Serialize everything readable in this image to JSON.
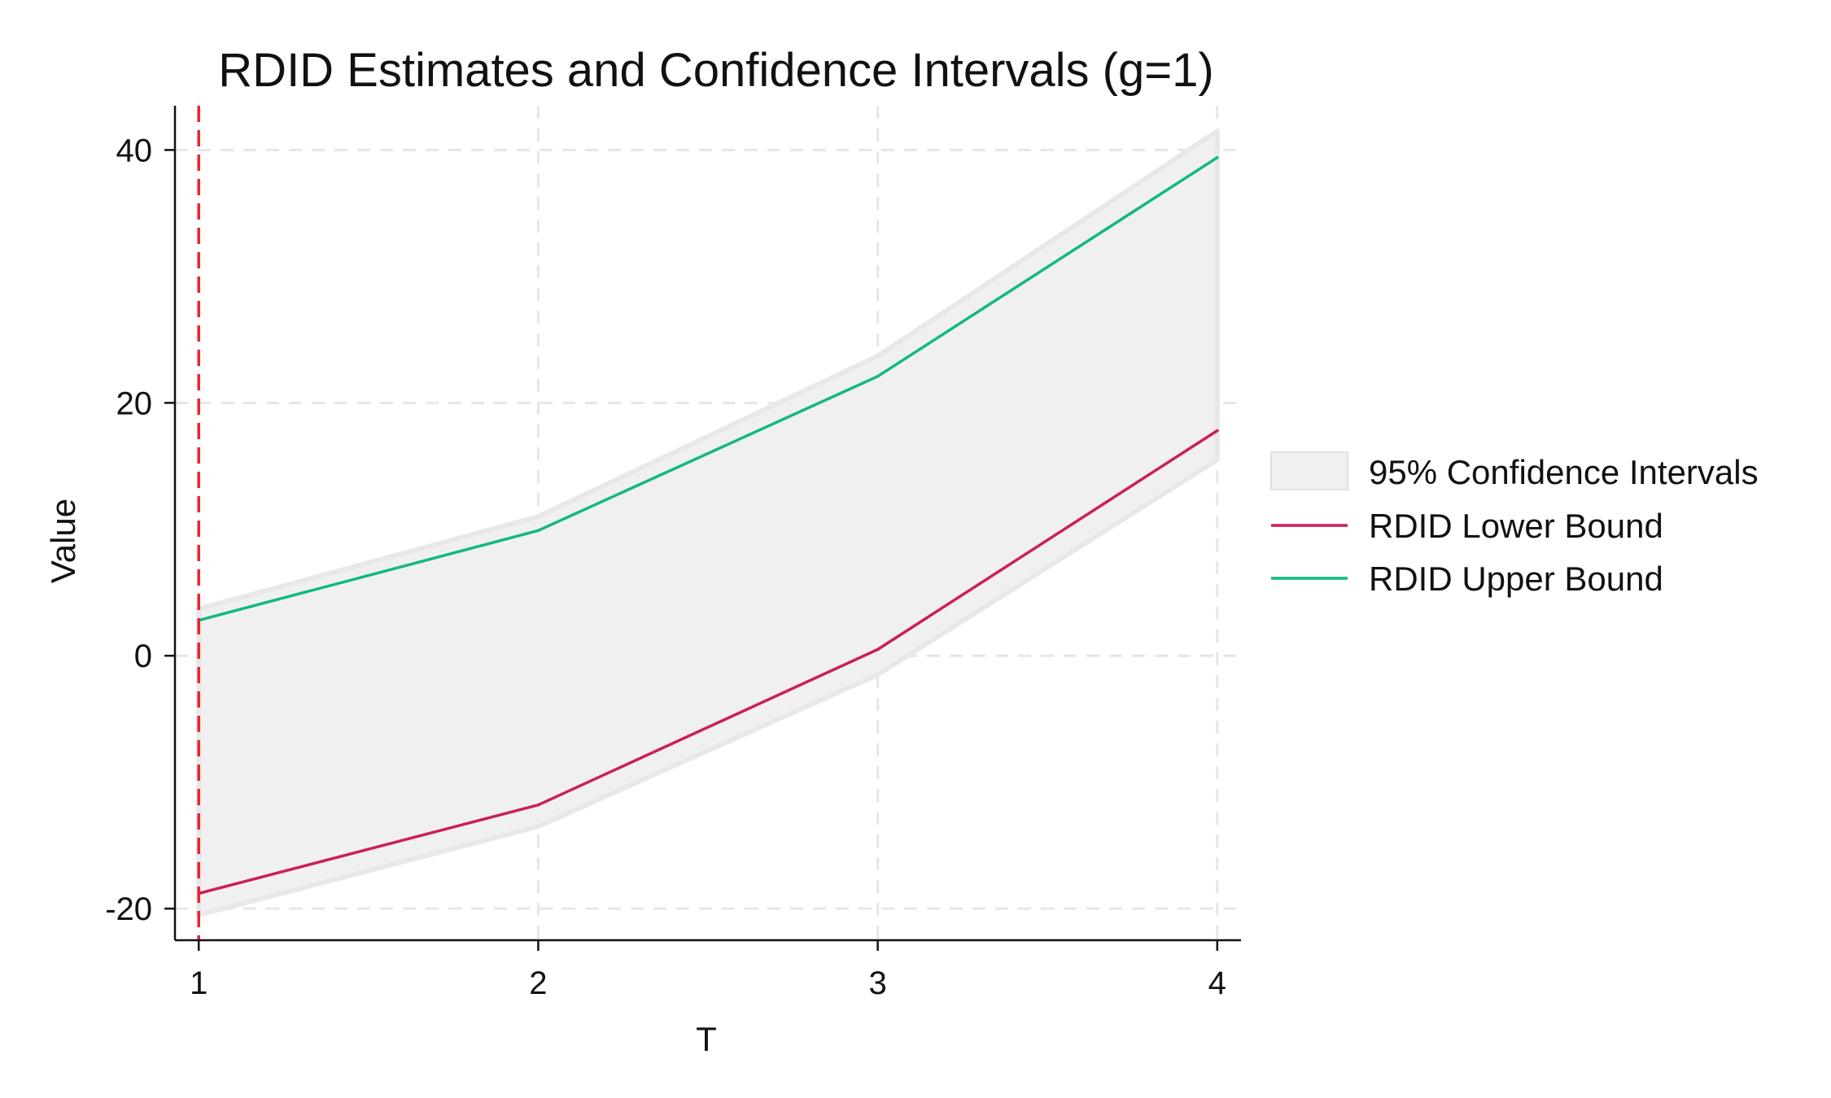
{
  "chart_data": {
    "type": "line",
    "title": "RDID Estimates and Confidence Intervals (g=1)",
    "xlabel": "T",
    "ylabel": "Value",
    "x": [
      1,
      2,
      3,
      4
    ],
    "xticks": [
      "1",
      "2",
      "3",
      "4"
    ],
    "yticks": [
      "-20",
      "0",
      "20",
      "40"
    ],
    "ytick_values": [
      -20,
      0,
      20,
      40
    ],
    "xlim": [
      0.93,
      4.07
    ],
    "ylim": [
      -22.5,
      43.5
    ],
    "grid": true,
    "legend_position": "right",
    "reference_line": {
      "x": 1,
      "color": "#e8242b",
      "style": "dashed"
    },
    "band": {
      "name": "95% Confidence Intervals",
      "lower": [
        -20.5,
        -13.5,
        -1.5,
        15.5
      ],
      "upper": [
        3.7,
        11.0,
        23.7,
        41.5
      ],
      "color": "#f0f0f0"
    },
    "series": [
      {
        "name": "RDID Lower Bound",
        "values": [
          -18.8,
          -11.8,
          0.5,
          17.8
        ],
        "color": "#cc1f55"
      },
      {
        "name": "RDID Upper Bound",
        "values": [
          2.8,
          9.9,
          22.1,
          39.4
        ],
        "color": "#10b981"
      }
    ]
  }
}
